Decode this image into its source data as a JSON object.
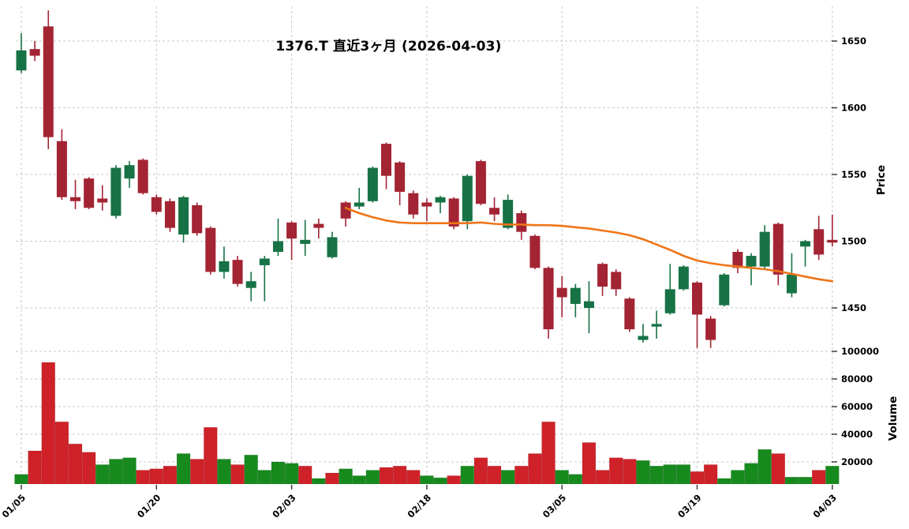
{
  "title": "1376.T 直近3ヶ月 (2026-04-03)",
  "colors": {
    "background": "#ffffff",
    "candle_up": "#177245",
    "candle_down": "#a32433",
    "volume_up": "#178a1e",
    "volume_down": "#cf2128",
    "ma_line": "#ee7518",
    "grid": "#c9c9c9",
    "tick": "#333333",
    "text": "#000000"
  },
  "chart_data": {
    "type": "candlestick",
    "title": "1376.T 直近3ヶ月 (2026-04-03)",
    "grid": true,
    "price_axis": {
      "label": "Price",
      "side": "right",
      "ticks": [
        1650,
        1600,
        1550,
        1500,
        1450
      ],
      "ylim": [
        1418,
        1678
      ]
    },
    "volume_axis": {
      "label": "Volume",
      "side": "right",
      "ticks": [
        100000,
        80000,
        60000,
        40000,
        20000
      ],
      "ylim": [
        0,
        115000
      ]
    },
    "x_tick_labels": [
      "01/05",
      "01/20",
      "02/03",
      "02/18",
      "03/05",
      "03/19",
      "04/03"
    ],
    "x_tick_indices": [
      0,
      10,
      20,
      30,
      40,
      50,
      60
    ],
    "dates": [
      "01/05",
      "01/06",
      "01/07",
      "01/08",
      "01/09",
      "01/13",
      "01/14",
      "01/15",
      "01/16",
      "01/19",
      "01/20",
      "01/21",
      "01/22",
      "01/23",
      "01/26",
      "01/27",
      "01/28",
      "01/29",
      "01/30",
      "02/02",
      "02/03",
      "02/04",
      "02/05",
      "02/06",
      "02/09",
      "02/10",
      "02/12",
      "02/13",
      "02/16",
      "02/17",
      "02/18",
      "02/19",
      "02/20",
      "02/24",
      "02/25",
      "02/26",
      "02/27",
      "03/02",
      "03/03",
      "03/04",
      "03/05",
      "03/06",
      "03/09",
      "03/10",
      "03/11",
      "03/12",
      "03/13",
      "03/16",
      "03/17",
      "03/18",
      "03/19",
      "03/23",
      "03/24",
      "03/25",
      "03/26",
      "03/27",
      "03/30",
      "03/31",
      "04/01",
      "04/02",
      "04/03"
    ],
    "open": [
      1628,
      1644,
      1661,
      1575,
      1533,
      1547,
      1532,
      1519,
      1547,
      1561,
      1533,
      1530,
      1505,
      1527,
      1510,
      1477,
      1486,
      1465,
      1482,
      1492,
      1514,
      1498,
      1513,
      1488,
      1529,
      1526,
      1530,
      1573,
      1559,
      1536,
      1529,
      1529,
      1532,
      1515,
      1560,
      1525,
      1510,
      1521,
      1504,
      1480,
      1465,
      1453,
      1450,
      1483,
      1477,
      1457,
      1426,
      1436,
      1446,
      1464,
      1469,
      1442,
      1452,
      1492,
      1481,
      1481,
      1513,
      1461,
      1496,
      1509,
      1501
    ],
    "high": [
      1656,
      1650,
      1673,
      1584,
      1546,
      1548,
      1542,
      1557,
      1560,
      1562,
      1535,
      1532,
      1534,
      1529,
      1511,
      1496,
      1489,
      1477,
      1489,
      1517,
      1515,
      1516,
      1517,
      1507,
      1530,
      1540,
      1556,
      1574,
      1560,
      1538,
      1532,
      1534,
      1533,
      1550,
      1561,
      1533,
      1535,
      1523,
      1505,
      1481,
      1474,
      1468,
      1470,
      1484,
      1479,
      1458,
      1438,
      1448,
      1483,
      1482,
      1470,
      1444,
      1476,
      1494,
      1491,
      1512,
      1514,
      1491,
      1501,
      1519,
      1520
    ],
    "low": [
      1626,
      1635,
      1569,
      1531,
      1524,
      1524,
      1523,
      1517,
      1540,
      1535,
      1520,
      1507,
      1499,
      1504,
      1475,
      1472,
      1466,
      1455,
      1455,
      1489,
      1486,
      1489,
      1502,
      1487,
      1511,
      1524,
      1529,
      1539,
      1527,
      1517,
      1515,
      1521,
      1509,
      1509,
      1527,
      1515,
      1509,
      1501,
      1479,
      1427,
      1443,
      1443,
      1431,
      1459,
      1459,
      1432,
      1424,
      1427,
      1445,
      1463,
      1420,
      1420,
      1451,
      1476,
      1467,
      1479,
      1467,
      1458,
      1481,
      1486,
      1496
    ],
    "close": [
      1643,
      1639,
      1578,
      1533,
      1530,
      1525,
      1529,
      1555,
      1557,
      1536,
      1522,
      1510,
      1533,
      1506,
      1477,
      1485,
      1468,
      1470,
      1487,
      1500,
      1502,
      1501,
      1510,
      1503,
      1517,
      1529,
      1555,
      1549,
      1537,
      1520,
      1526,
      1533,
      1511,
      1549,
      1528,
      1520,
      1531,
      1507,
      1480,
      1434,
      1458,
      1465,
      1455,
      1466,
      1464,
      1434,
      1429,
      1438,
      1464,
      1481,
      1445,
      1426,
      1475,
      1480,
      1489,
      1507,
      1475,
      1475,
      1500,
      1490,
      1499
    ],
    "volume": [
      11000,
      28000,
      92000,
      49000,
      33000,
      27000,
      18000,
      22000,
      23000,
      14000,
      15000,
      17000,
      26000,
      22000,
      45000,
      22000,
      18000,
      25000,
      14000,
      20000,
      19000,
      17000,
      8000,
      12000,
      15000,
      10000,
      14000,
      16000,
      17000,
      14000,
      10000,
      8500,
      10000,
      17000,
      23000,
      17000,
      14000,
      17000,
      26000,
      49000,
      14000,
      11000,
      34000,
      14000,
      23000,
      22000,
      21000,
      17000,
      18000,
      18000,
      13000,
      18000,
      8000,
      14000,
      19000,
      29000,
      26000,
      9000,
      9000,
      14000,
      17000
    ],
    "volume_dir": [
      "up",
      "down",
      "down",
      "down",
      "down",
      "down",
      "up",
      "up",
      "up",
      "down",
      "down",
      "down",
      "up",
      "down",
      "down",
      "up",
      "down",
      "up",
      "up",
      "up",
      "up",
      "down",
      "up",
      "down",
      "up",
      "up",
      "up",
      "down",
      "down",
      "down",
      "up",
      "up",
      "down",
      "up",
      "down",
      "down",
      "up",
      "down",
      "down",
      "down",
      "up",
      "up",
      "down",
      "down",
      "down",
      "down",
      "up",
      "up",
      "up",
      "up",
      "down",
      "down",
      "up",
      "up",
      "up",
      "up",
      "down",
      "up",
      "up",
      "down",
      "up"
    ],
    "ma25": [
      null,
      null,
      null,
      null,
      null,
      null,
      null,
      null,
      null,
      null,
      null,
      null,
      null,
      null,
      null,
      null,
      null,
      null,
      null,
      null,
      null,
      null,
      null,
      null,
      1525,
      1521,
      1518,
      1515.5,
      1514,
      1513.5,
      1513.5,
      1513.5,
      1513.5,
      1513.5,
      1514,
      1513,
      1512.5,
      1512.5,
      1512,
      1512,
      1511.5,
      1510.5,
      1509.5,
      1508,
      1506.5,
      1504.5,
      1501.5,
      1497.5,
      1493.5,
      1489,
      1485.5,
      1483.5,
      1482,
      1481,
      1480,
      1479,
      1477.5,
      1475.5,
      1473.5,
      1471.5,
      1470
    ]
  }
}
